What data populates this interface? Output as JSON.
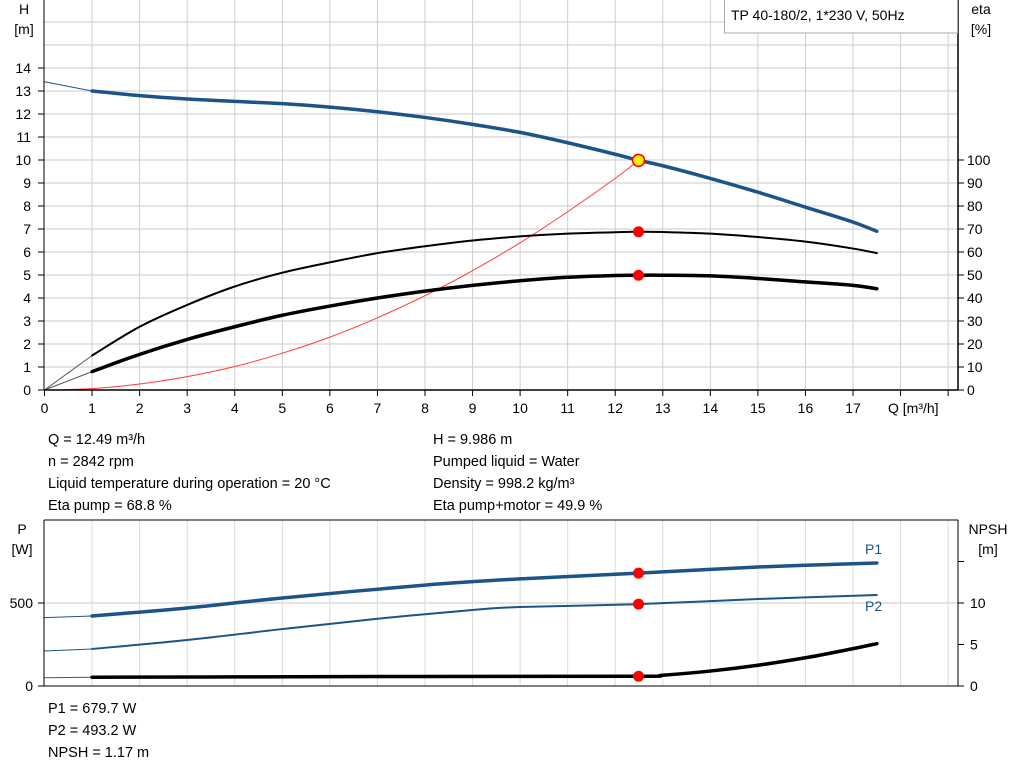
{
  "chart_data": [
    {
      "type": "line",
      "title": "TP 40-180/2, 1*230 V, 50Hz",
      "xlabel": "Q [m³/h]",
      "ylabel_left": "H\n[m]",
      "ylabel_left_lines": [
        "H",
        "[m]"
      ],
      "ylabel_right_lines": [
        "eta",
        "[%]"
      ],
      "xlim": [
        0,
        19.2
      ],
      "ylim_left": [
        0,
        17
      ],
      "ylim_right": [
        0,
        170
      ],
      "x_ticks": [
        0,
        1,
        2,
        3,
        4,
        5,
        6,
        7,
        8,
        9,
        10,
        11,
        12,
        13,
        14,
        15,
        16,
        17
      ],
      "y_left_ticks": [
        0,
        1,
        2,
        3,
        4,
        5,
        6,
        7,
        8,
        9,
        10,
        11,
        12,
        13,
        14
      ],
      "y_right_ticks": [
        0,
        10,
        20,
        30,
        40,
        50,
        60,
        70,
        80,
        90,
        100
      ],
      "grid": true,
      "legend": "top-right",
      "series": [
        {
          "key": "H",
          "axis": "left",
          "color": "#1c5388",
          "x": [
            0,
            1,
            2,
            3,
            4,
            5,
            6,
            7,
            8,
            9,
            10,
            11,
            12,
            12.49,
            13,
            14,
            15,
            16,
            17,
            17.5
          ],
          "y": [
            13.4,
            13.0,
            12.8,
            12.65,
            12.55,
            12.45,
            12.3,
            12.1,
            11.85,
            11.55,
            11.2,
            10.75,
            10.25,
            9.986,
            9.75,
            9.2,
            8.6,
            7.95,
            7.3,
            6.9
          ]
        },
        {
          "key": "eta_pump",
          "axis": "right",
          "color": "#000000",
          "x": [
            0,
            1,
            2,
            3,
            4,
            5,
            6,
            7,
            8,
            9,
            10,
            11,
            12,
            12.49,
            13,
            14,
            15,
            16,
            17,
            17.5
          ],
          "y": [
            0,
            15,
            27.5,
            37,
            45,
            51,
            55.5,
            59.5,
            62.5,
            65,
            66.8,
            68,
            68.6,
            68.8,
            68.7,
            68,
            66.5,
            64.5,
            61.5,
            59.5
          ]
        },
        {
          "key": "eta_pump_motor",
          "axis": "right",
          "color": "#000000",
          "x": [
            0,
            1,
            2,
            3,
            4,
            5,
            6,
            7,
            8,
            9,
            10,
            11,
            12,
            12.49,
            13,
            14,
            15,
            16,
            17,
            17.5
          ],
          "y": [
            0,
            8,
            15.5,
            22,
            27.5,
            32.5,
            36.5,
            40,
            43,
            45.5,
            47.5,
            49,
            49.8,
            49.9,
            49.9,
            49.6,
            48.5,
            47,
            45.5,
            44
          ]
        },
        {
          "key": "system_curve",
          "axis": "left",
          "color": "#ff3b3b",
          "x": [
            0,
            1,
            2,
            3,
            4,
            5,
            6,
            7,
            8,
            9,
            10,
            11,
            12,
            12.49
          ],
          "y": [
            0,
            0.06,
            0.26,
            0.58,
            1.02,
            1.6,
            2.3,
            3.14,
            4.1,
            5.19,
            6.4,
            7.75,
            9.2,
            9.986
          ]
        }
      ],
      "operating_point": {
        "Q": 12.49,
        "H": 9.986,
        "eta_pump": 68.8,
        "eta_pump_motor": 49.9
      }
    },
    {
      "type": "line",
      "xlim": [
        0,
        19.2
      ],
      "ylabel_left_lines": [
        "P",
        "[W]"
      ],
      "ylabel_right_lines": [
        "NPSH",
        "[m]"
      ],
      "ylim_left": [
        0,
        1000
      ],
      "ylim_right": [
        0,
        20
      ],
      "y_left_ticks": [
        0,
        500
      ],
      "y_right_ticks": [
        0,
        5,
        10,
        15
      ],
      "y_right_tick_labels": [
        "0",
        "5",
        "10",
        ""
      ],
      "grid": true,
      "series": [
        {
          "key": "P1",
          "name": "P1",
          "axis": "left",
          "color": "#1c5388",
          "x": [
            0,
            1,
            3,
            5,
            8,
            10,
            12.49,
            15,
            17.5
          ],
          "y": [
            412,
            422,
            470,
            530,
            608,
            645,
            679.7,
            717,
            741
          ]
        },
        {
          "key": "P2",
          "name": "P2",
          "axis": "left",
          "color": "#1c5388",
          "x": [
            0,
            1,
            3,
            5,
            7,
            9,
            10,
            12.49,
            15,
            17.5
          ],
          "y": [
            211,
            223,
            277,
            343,
            405,
            458,
            476,
            493.2,
            524,
            548
          ]
        },
        {
          "key": "NPSH",
          "axis": "right",
          "color": "#000000",
          "x": [
            0,
            1,
            4,
            8,
            12.49,
            13,
            14,
            15,
            16,
            17,
            17.5
          ],
          "y": [
            1.0,
            1.05,
            1.1,
            1.15,
            1.17,
            1.3,
            1.8,
            2.5,
            3.4,
            4.5,
            5.1
          ]
        }
      ],
      "operating_point": {
        "Q": 12.49,
        "P1": 679.7,
        "P2": 493.2,
        "NPSH": 1.17
      }
    }
  ],
  "info_top_left": [
    "Q = 12.49 m³/h",
    "n = 2842 rpm",
    "Liquid temperature during operation = 20 °C",
    "Eta pump = 68.8 %"
  ],
  "info_top_right": [
    "H = 9.986 m",
    "Pumped liquid = Water",
    "Density = 998.2 kg/m³",
    "Eta pump+motor = 49.9 %"
  ],
  "info_bottom": [
    "P1 = 679.7 W",
    "P2 = 493.2 W",
    "NPSH = 1.17 m"
  ]
}
